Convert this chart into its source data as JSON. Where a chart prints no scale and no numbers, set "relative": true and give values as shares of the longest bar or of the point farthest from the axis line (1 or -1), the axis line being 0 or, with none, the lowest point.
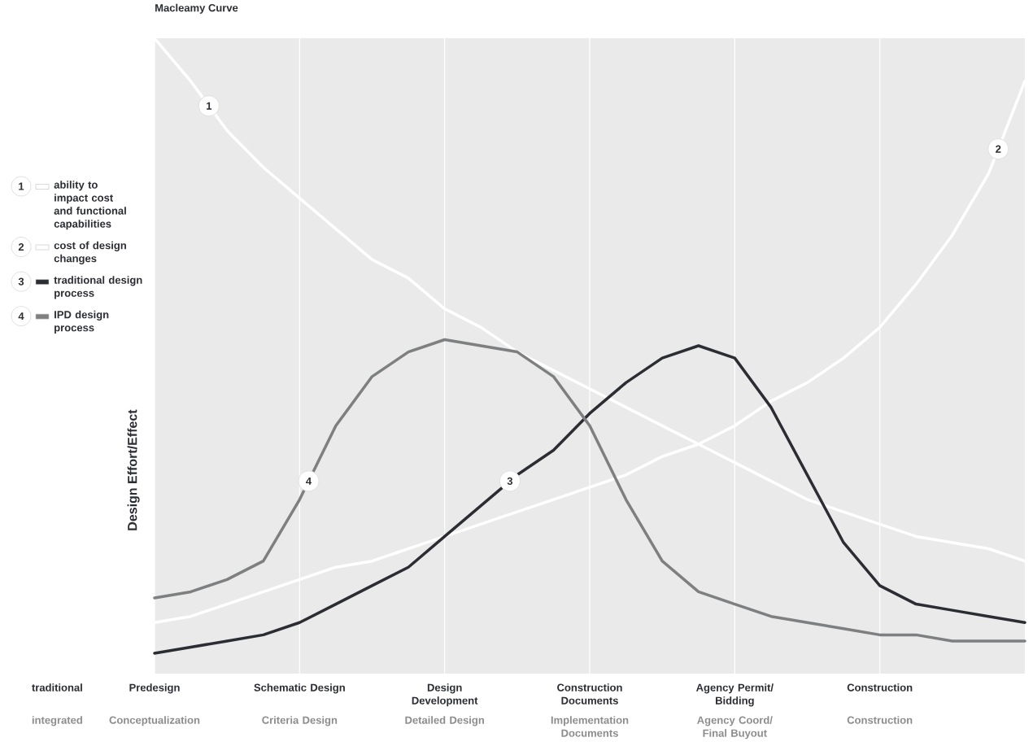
{
  "chart_data": {
    "type": "line",
    "title": "Macleamy Curve",
    "ylabel": "Design Effort/Effect",
    "relative": true,
    "grid": "x",
    "legend": "left",
    "line_style": "solid",
    "categories": [
      "Predesign",
      null,
      null,
      null,
      "Schematic Design",
      null,
      null,
      null,
      "Design Development",
      null,
      null,
      null,
      "Construction Documents",
      null,
      null,
      null,
      "Agency Permit/ Bidding",
      null,
      null,
      null,
      "Construction",
      null,
      null,
      null,
      null
    ],
    "series": [
      {
        "name": "ability to impact cost and functional capabilities",
        "color": "#ffffff",
        "values": [
          1.0,
          0.93,
          0.85,
          0.79,
          0.74,
          0.69,
          0.64,
          0.61,
          0.56,
          0.53,
          0.49,
          0.46,
          0.43,
          0.4,
          0.37,
          0.34,
          0.31,
          0.28,
          0.25,
          0.23,
          0.21,
          0.19,
          0.18,
          0.17,
          0.15
        ]
      },
      {
        "name": "cost of design changes",
        "color": "#ffffff",
        "values": [
          0.05,
          0.06,
          0.08,
          0.1,
          0.12,
          0.14,
          0.15,
          0.17,
          0.19,
          0.21,
          0.23,
          0.25,
          0.27,
          0.29,
          0.32,
          0.34,
          0.37,
          0.41,
          0.44,
          0.48,
          0.53,
          0.6,
          0.68,
          0.78,
          0.93
        ]
      },
      {
        "name": "traditional design process",
        "color": "#2b2d33",
        "values": [
          0,
          0.01,
          0.02,
          0.03,
          0.05,
          0.08,
          0.11,
          0.14,
          0.19,
          0.24,
          0.29,
          0.33,
          0.39,
          0.44,
          0.48,
          0.5,
          0.48,
          0.4,
          0.29,
          0.18,
          0.11,
          0.08,
          0.07,
          0.06,
          0.05
        ]
      },
      {
        "name": "IPD design process",
        "color": "#7e7f80",
        "values": [
          0.09,
          0.1,
          0.12,
          0.15,
          0.25,
          0.37,
          0.45,
          0.49,
          0.51,
          0.5,
          0.49,
          0.45,
          0.37,
          0.25,
          0.15,
          0.1,
          0.08,
          0.06,
          0.05,
          0.04,
          0.03,
          0.03,
          0.02,
          0.02,
          0.02
        ]
      }
    ],
    "annotations": [
      {
        "text": "1",
        "y": 0.89
      },
      {
        "text": "2",
        "y": 0.82
      },
      {
        "text": "3",
        "y": 0.28
      },
      {
        "text": "4",
        "y": 0.28
      },
      "traditional",
      "integrated",
      "Conceptualization",
      "Criteria Design",
      "Detailed Design",
      "Implementation Documents",
      "Agency Coord/ Final Buyout",
      "Construction"
    ]
  }
}
